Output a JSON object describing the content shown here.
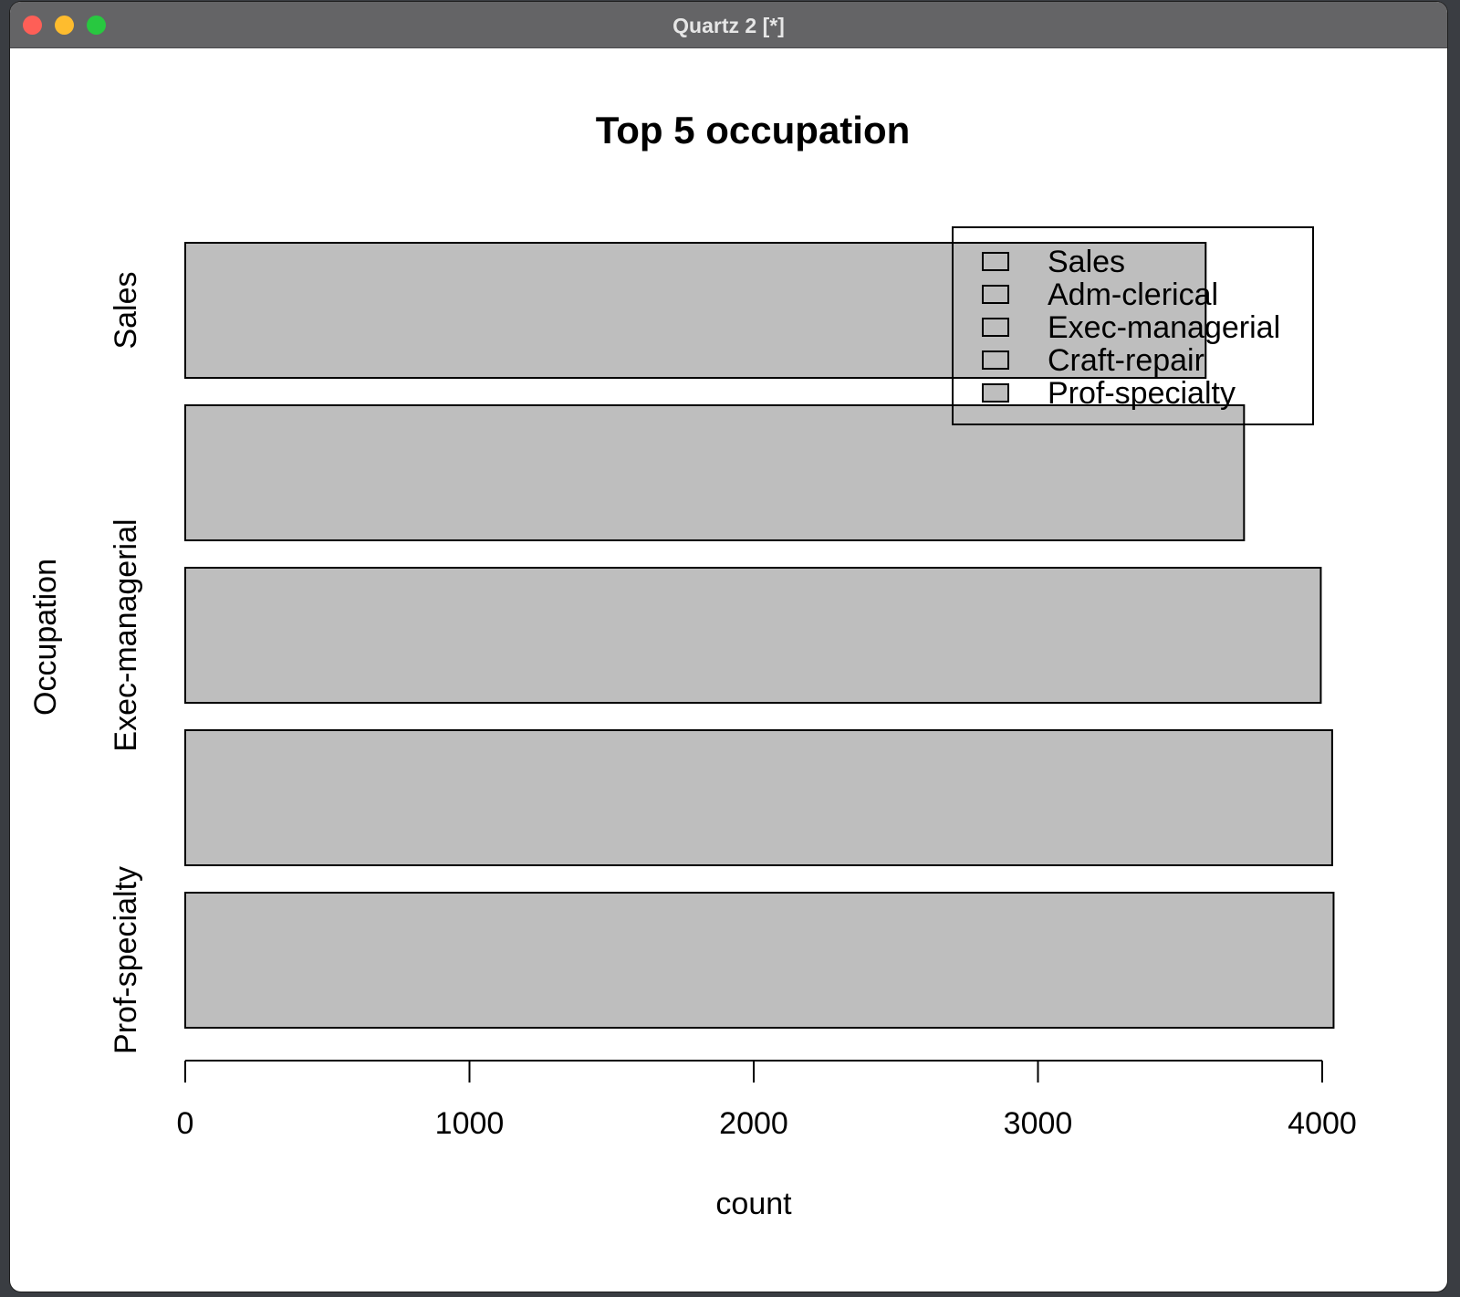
{
  "window": {
    "title": "Quartz 2 [*]"
  },
  "chart_data": {
    "type": "bar",
    "orientation": "horizontal",
    "title": "Top 5 occupation",
    "xlabel": "count",
    "ylabel": "Occupation",
    "categories": [
      "Sales",
      "Adm-clerical",
      "Exec-managerial",
      "Craft-repair",
      "Prof-specialty"
    ],
    "y_tick_labels": [
      "Sales",
      "Exec-managerial",
      "Prof-specialty"
    ],
    "values": [
      3590,
      3725,
      3995,
      4035,
      4040
    ],
    "xlim": [
      0,
      4000
    ],
    "x_ticks": [
      0,
      1000,
      2000,
      3000,
      4000
    ],
    "legend": {
      "position": "top-right",
      "entries": [
        "Sales",
        "Adm-clerical",
        "Exec-managerial",
        "Craft-repair",
        "Prof-specialty"
      ]
    },
    "bar_color": "#bebebe",
    "grid": false
  }
}
